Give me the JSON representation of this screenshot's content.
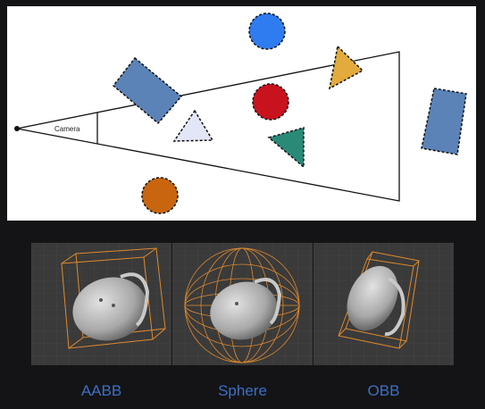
{
  "diagram": {
    "camera_label": "Camera",
    "colors": {
      "blue_circle": "#2f7cf0",
      "red_circle": "#c8121e",
      "orange_circle": "#c9650f",
      "yellow_triangle": "#e3ab3c",
      "teal_triangle": "#2a8a78",
      "lavender_triangle": "#e3e6f7",
      "steel_rect": "#5b83b8"
    }
  },
  "panels": [
    {
      "label": "AABB"
    },
    {
      "label": "Sphere"
    },
    {
      "label": "OBB"
    }
  ],
  "accent_color": "#3d6fc4",
  "wire_color": "#e08a2c"
}
